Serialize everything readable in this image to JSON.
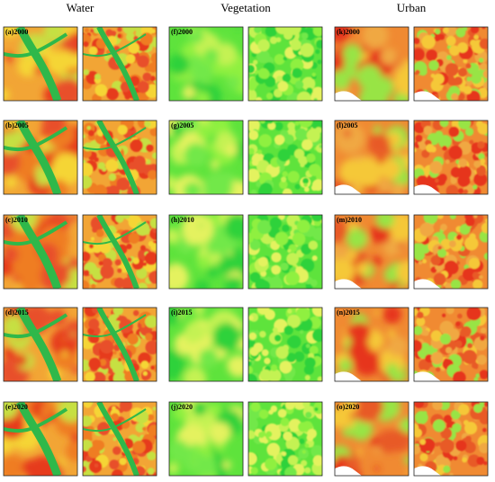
{
  "columns": [
    {
      "title": "Water",
      "labels": [
        "(a)2000",
        "(b)2005",
        "(c)2010",
        "(d)2015",
        "(e)2020"
      ]
    },
    {
      "title": "Vegetation",
      "labels": [
        "(f)2000",
        "(g)2005",
        "(h)2010",
        "(i)2015",
        "(j)2020"
      ]
    },
    {
      "title": "Urban",
      "labels": [
        "(k)2000",
        "(l)2005",
        "(m)2010",
        "(n)2015",
        "(o)2020"
      ]
    }
  ]
}
